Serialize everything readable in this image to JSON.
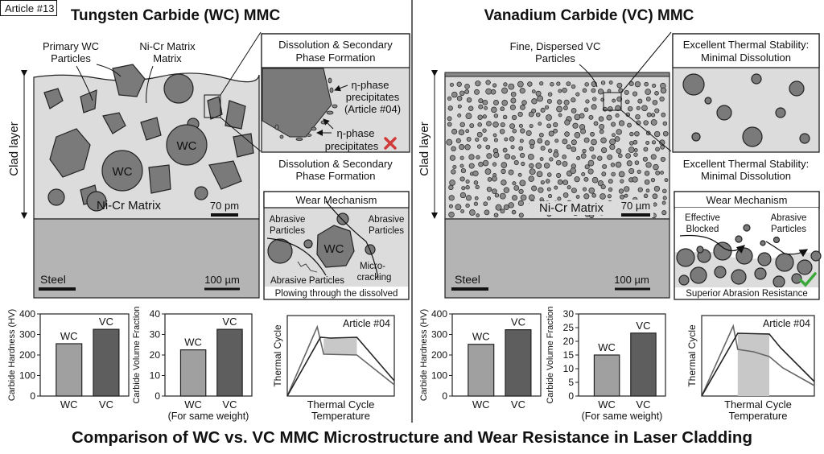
{
  "article_badge": "Article #13",
  "left": {
    "heading": "Tungsten Carbide (WC) MMC",
    "clad_label": "Clad layer",
    "primary_particles": [
      "Primary WC",
      "Particles"
    ],
    "matrix_callout": [
      "Ni-Cr Matrix",
      "Matrix"
    ],
    "particle_labels": [
      "WC",
      "WC"
    ],
    "matrix_label": "Ni-Cr Matrix",
    "scale_clad": "70 pm",
    "steel_label": "Steel",
    "scale_steel": "100 µm",
    "inset": {
      "title": [
        "Dissolution & Secondary",
        "Phase Formation"
      ],
      "callout1": [
        "η-phase",
        "precipitates",
        "(Article #04)"
      ],
      "callout2": [
        "η-phase",
        "precipitates"
      ],
      "status_icon": "red-x-icon",
      "caption": [
        "Dissolution & Secondary",
        "Phase Formation"
      ]
    },
    "wear": {
      "title": "Wear Mechanism",
      "abrasive_left": [
        "Abrasive",
        "Particles"
      ],
      "abrasive_right": [
        "Abrasive",
        "Particles"
      ],
      "particle": "WC",
      "microcracking": [
        "Micro-",
        "cracking"
      ],
      "abrasive_bottom": "Abrasive Particles",
      "footer": "Plowing through the dissolved"
    }
  },
  "right": {
    "heading": "Vanadium Carbide (VC) MMC",
    "clad_label": "Clad layer",
    "particles_callout": [
      "Fine, Dispersed VC",
      "Particles"
    ],
    "matrix_label": "Ni-Cr Matrix",
    "scale_clad": "70 µm",
    "steel_label": "Steel",
    "scale_steel": "100 µm",
    "inset": {
      "title": [
        "Excellent Thermal Stability:",
        "Minimal Dissolution"
      ],
      "caption": [
        "Excellent Thermal Stability:",
        "Minimal Dissolution"
      ]
    },
    "wear": {
      "title": "Wear Mechanism",
      "effective": [
        "Effective",
        "Blocked"
      ],
      "abrasive": [
        "Abrasive",
        "Particles"
      ],
      "status_icon": "green-check-icon",
      "footer": "Superior Abrasion Resistance"
    }
  },
  "colors": {
    "wc_bar": "#a0a0a0",
    "vc_bar": "#5e5e5e",
    "clad": "#dcdcdc",
    "steel": "#b4b4b4",
    "cross": "#d23a3a",
    "check": "#3aa83a"
  },
  "chart_data": [
    {
      "id": "wc-hardness",
      "type": "bar",
      "categories": [
        "WC",
        "VC"
      ],
      "values": [
        255,
        325
      ],
      "data_labels": [
        "WC",
        "VC"
      ],
      "ylabel": "Carbide Hardness (HV)",
      "ylim": [
        0,
        400
      ],
      "yticks": [
        0,
        100,
        200,
        300,
        400
      ],
      "xlabel": ""
    },
    {
      "id": "wc-volume",
      "type": "bar",
      "categories": [
        "WC",
        "VC"
      ],
      "values": [
        22.5,
        32.5
      ],
      "data_labels": [
        "WC",
        "VC"
      ],
      "ylabel": "Carbide Volume Fraction",
      "ylim": [
        0,
        40
      ],
      "yticks": [
        0,
        10,
        20,
        30,
        40
      ],
      "xlabel": "(For same weight)"
    },
    {
      "id": "wc-thermal",
      "type": "line",
      "annotation": "Article #04",
      "ylabel": "Thermal Cycle",
      "xlabel": [
        "Thermal Cycle",
        "Temperature"
      ]
    },
    {
      "id": "vc-hardness",
      "type": "bar",
      "categories": [
        "WC",
        "VC"
      ],
      "values": [
        252,
        323
      ],
      "data_labels": [
        "WC",
        "VC"
      ],
      "ylabel": "Carbide Hardness (HV)",
      "ylim": [
        0,
        400
      ],
      "yticks": [
        0,
        100,
        200,
        300,
        400
      ],
      "xlabel": ""
    },
    {
      "id": "vc-volume",
      "type": "bar",
      "categories": [
        "WC",
        "VC"
      ],
      "values": [
        15,
        23
      ],
      "data_labels": [
        "WC",
        "VC"
      ],
      "ylabel": "Carbide Volume Fraction",
      "ylim": [
        0,
        30
      ],
      "yticks": [
        0,
        5,
        10,
        15,
        20,
        25,
        30
      ],
      "xlabel": "(For same weight)"
    },
    {
      "id": "vc-thermal",
      "type": "line",
      "annotation": "Article #04",
      "ylabel": "Thermal Cycle",
      "xlabel": [
        "Thermal Cycle",
        "Temperature"
      ]
    }
  ],
  "footer_title": "Comparison of WC vs. VC MMC Microstructure and Wear Resistance in Laser Cladding"
}
